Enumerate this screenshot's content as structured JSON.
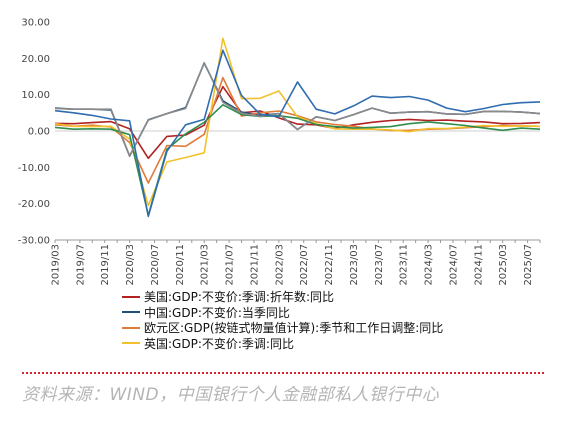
{
  "chart_data": {
    "type": "line",
    "x": [
      "2019/03",
      "2019/05",
      "2019/07",
      "2019/09",
      "2019/11",
      "2020/01",
      "2020/03",
      "2020/05",
      "2020/07",
      "2020/09",
      "2020/11",
      "2021/01",
      "2021/03",
      "2021/05",
      "2021/07",
      "2021/09",
      "2021/11",
      "2022/01",
      "2022/03",
      "2022/05",
      "2022/07",
      "2022/09",
      "2022/11",
      "2023/01",
      "2023/03",
      "2023/05",
      "2023/07",
      "2023/09",
      "2023/11",
      "2024/01",
      "2024/03",
      "2024/05",
      "2024/07",
      "2024/09",
      "2024/11",
      "2025/01",
      "2025/03",
      "2025/05",
      "2025/07",
      "2025/09"
    ],
    "xtick_labels": [
      "2019/03",
      "2019/07",
      "2019/11",
      "2020/03",
      "2020/07",
      "2020/11",
      "2021/03",
      "2021/07",
      "2021/11",
      "2022/03",
      "2022/07",
      "2022/11",
      "2023/03",
      "2023/07",
      "2023/11",
      "2024/03",
      "2024/07",
      "2024/11",
      "2025/03",
      "2025/07"
    ],
    "ylim": [
      -30,
      30
    ],
    "ytick_labels": [
      "30.00",
      "20.00",
      "10.00",
      "0.00",
      "-10.00",
      "-20.00",
      "-30.00"
    ],
    "series": [
      {
        "name": "美国:GDP:不变价:季调:折年数:同比",
        "color": "#b22222",
        "points": [
          [
            "2019/03",
            2.1
          ],
          [
            "2019/06",
            2.0
          ],
          [
            "2019/09",
            2.3
          ],
          [
            "2019/12",
            2.6
          ],
          [
            "2020/03",
            0.6
          ],
          [
            "2020/06",
            -7.5
          ],
          [
            "2020/09",
            -1.5
          ],
          [
            "2020/12",
            -1.1
          ],
          [
            "2021/03",
            1.6
          ],
          [
            "2021/06",
            12.2
          ],
          [
            "2021/09",
            5.0
          ],
          [
            "2021/12",
            5.5
          ],
          [
            "2022/03",
            3.6
          ],
          [
            "2022/06",
            1.9
          ],
          [
            "2022/09",
            1.7
          ],
          [
            "2022/12",
            0.7
          ],
          [
            "2023/03",
            1.7
          ],
          [
            "2023/06",
            2.4
          ],
          [
            "2023/09",
            2.9
          ],
          [
            "2023/12",
            3.2
          ],
          [
            "2024/03",
            2.9
          ],
          [
            "2024/06",
            3.0
          ],
          [
            "2024/09",
            2.7
          ],
          [
            "2024/12",
            2.5
          ],
          [
            "2025/03",
            2.0
          ],
          [
            "2025/06",
            2.1
          ],
          [
            "2025/09",
            2.3
          ]
        ]
      },
      {
        "name": "中国:GDP:不变价:当季同比",
        "color": "#1f4e79",
        "points": [
          [
            "2019/03",
            6.3
          ],
          [
            "2019/06",
            6.0
          ],
          [
            "2019/09",
            6.0
          ],
          [
            "2019/12",
            5.8
          ],
          [
            "2020/03",
            -6.9
          ],
          [
            "2020/06",
            3.1
          ],
          [
            "2020/09",
            4.8
          ],
          [
            "2020/12",
            6.4
          ],
          [
            "2021/03",
            18.7
          ],
          [
            "2021/06",
            8.3
          ],
          [
            "2021/09",
            5.2
          ],
          [
            "2021/12",
            4.3
          ],
          [
            "2022/03",
            4.8
          ],
          [
            "2022/06",
            0.4
          ],
          [
            "2022/09",
            3.9
          ],
          [
            "2022/12",
            2.9
          ],
          [
            "2023/03",
            4.5
          ],
          [
            "2023/06",
            6.3
          ],
          [
            "2023/09",
            4.9
          ],
          [
            "2023/12",
            5.2
          ],
          [
            "2024/03",
            5.3
          ],
          [
            "2024/06",
            4.7
          ],
          [
            "2024/09",
            4.6
          ],
          [
            "2024/12",
            5.4
          ],
          [
            "2025/03",
            5.4
          ],
          [
            "2025/06",
            5.2
          ],
          [
            "2025/09",
            4.8
          ]
        ]
      },
      {
        "name": "欧元区:GDP(按链式物量值计算):季节和工作日调整:同比",
        "color": "#e07b39",
        "points": [
          [
            "2019/03",
            1.7
          ],
          [
            "2019/06",
            1.3
          ],
          [
            "2019/09",
            1.6
          ],
          [
            "2019/12",
            1.1
          ],
          [
            "2020/03",
            -3.2
          ],
          [
            "2020/06",
            -14.3
          ],
          [
            "2020/09",
            -4.0
          ],
          [
            "2020/12",
            -4.2
          ],
          [
            "2021/03",
            -0.9
          ],
          [
            "2021/06",
            14.7
          ],
          [
            "2021/09",
            4.1
          ],
          [
            "2021/12",
            5.0
          ],
          [
            "2022/03",
            5.5
          ],
          [
            "2022/06",
            4.2
          ],
          [
            "2022/09",
            2.5
          ],
          [
            "2022/12",
            1.8
          ],
          [
            "2023/03",
            1.3
          ],
          [
            "2023/06",
            0.6
          ],
          [
            "2023/09",
            0.1
          ],
          [
            "2023/12",
            0.2
          ],
          [
            "2024/03",
            0.5
          ],
          [
            "2024/06",
            0.6
          ],
          [
            "2024/09",
            0.9
          ],
          [
            "2024/12",
            1.2
          ],
          [
            "2025/03",
            1.5
          ],
          [
            "2025/06",
            1.4
          ],
          [
            "2025/09",
            1.3
          ]
        ]
      },
      {
        "name": "英国:GDP:不变价:季调:同比",
        "color": "#f2c12e",
        "points": [
          [
            "2019/03",
            2.0
          ],
          [
            "2019/06",
            1.3
          ],
          [
            "2019/09",
            1.2
          ],
          [
            "2019/12",
            1.3
          ],
          [
            "2020/03",
            -2.2
          ],
          [
            "2020/06",
            -20.5
          ],
          [
            "2020/09",
            -8.5
          ],
          [
            "2020/12",
            -7.3
          ],
          [
            "2021/03",
            -6.0
          ],
          [
            "2021/06",
            25.5
          ],
          [
            "2021/09",
            8.9
          ],
          [
            "2021/12",
            9.0
          ],
          [
            "2022/03",
            11.0
          ],
          [
            "2022/06",
            3.9
          ],
          [
            "2022/09",
            2.0
          ],
          [
            "2022/12",
            0.6
          ],
          [
            "2023/03",
            0.5
          ],
          [
            "2023/06",
            0.5
          ],
          [
            "2023/09",
            0.3
          ],
          [
            "2023/12",
            -0.2
          ],
          [
            "2024/03",
            0.7
          ],
          [
            "2024/06",
            0.7
          ],
          [
            "2024/09",
            1.1
          ],
          [
            "2024/12",
            1.5
          ],
          [
            "2025/03",
            1.3
          ],
          [
            "2025/06",
            1.4
          ],
          [
            "2025/09",
            1.3
          ]
        ]
      },
      {
        "name": "",
        "color": "#2f8e4e",
        "points": [
          [
            "2019/03",
            1.0
          ],
          [
            "2019/06",
            0.5
          ],
          [
            "2019/09",
            0.6
          ],
          [
            "2019/12",
            0.5
          ],
          [
            "2020/03",
            -1.0
          ],
          [
            "2020/06",
            -23.2
          ],
          [
            "2020/09",
            -5.0
          ],
          [
            "2020/12",
            -0.8
          ],
          [
            "2021/03",
            2.4
          ],
          [
            "2021/06",
            7.2
          ],
          [
            "2021/09",
            4.5
          ],
          [
            "2021/12",
            4.0
          ],
          [
            "2022/03",
            4.2
          ],
          [
            "2022/06",
            3.5
          ],
          [
            "2022/09",
            1.8
          ],
          [
            "2022/12",
            1.2
          ],
          [
            "2023/03",
            0.8
          ],
          [
            "2023/06",
            1.0
          ],
          [
            "2023/09",
            1.2
          ],
          [
            "2023/12",
            2.0
          ],
          [
            "2024/03",
            2.5
          ],
          [
            "2024/06",
            2.0
          ],
          [
            "2024/09",
            1.5
          ],
          [
            "2024/12",
            0.8
          ],
          [
            "2025/03",
            0.2
          ],
          [
            "2025/06",
            0.8
          ],
          [
            "2025/09",
            0.5
          ]
        ]
      },
      {
        "name": "",
        "color": "#8a8a8a",
        "points": [
          [
            "2019/03",
            6.2
          ],
          [
            "2019/06",
            6.0
          ],
          [
            "2019/09",
            6.0
          ],
          [
            "2019/12",
            6.0
          ],
          [
            "2020/03",
            -6.8
          ],
          [
            "2020/06",
            3.0
          ],
          [
            "2020/09",
            4.8
          ],
          [
            "2020/12",
            6.2
          ],
          [
            "2021/03",
            18.8
          ],
          [
            "2021/06",
            7.9
          ],
          [
            "2021/09",
            4.9
          ],
          [
            "2021/12",
            4.0
          ],
          [
            "2022/03",
            4.8
          ],
          [
            "2022/06",
            0.4
          ],
          [
            "2022/09",
            3.9
          ],
          [
            "2022/12",
            2.9
          ],
          [
            "2023/03",
            4.5
          ],
          [
            "2023/06",
            6.3
          ],
          [
            "2023/09",
            4.9
          ],
          [
            "2023/12",
            5.2
          ],
          [
            "2024/03",
            5.3
          ],
          [
            "2024/06",
            4.7
          ],
          [
            "2024/09",
            4.6
          ],
          [
            "2024/12",
            5.4
          ],
          [
            "2025/03",
            5.4
          ],
          [
            "2025/06",
            5.2
          ],
          [
            "2025/09",
            4.8
          ]
        ]
      },
      {
        "name": "",
        "color": "#2f6db0",
        "points": [
          [
            "2019/03",
            5.6
          ],
          [
            "2019/06",
            5.0
          ],
          [
            "2019/09",
            4.3
          ],
          [
            "2019/12",
            3.3
          ],
          [
            "2020/03",
            2.8
          ],
          [
            "2020/06",
            -23.5
          ],
          [
            "2020/09",
            -5.6
          ],
          [
            "2020/12",
            1.7
          ],
          [
            "2021/03",
            3.2
          ],
          [
            "2021/06",
            22.2
          ],
          [
            "2021/09",
            9.8
          ],
          [
            "2021/12",
            4.6
          ],
          [
            "2022/03",
            3.9
          ],
          [
            "2022/06",
            13.5
          ],
          [
            "2022/09",
            6.0
          ],
          [
            "2022/12",
            4.7
          ],
          [
            "2023/03",
            6.9
          ],
          [
            "2023/06",
            9.6
          ],
          [
            "2023/09",
            9.2
          ],
          [
            "2023/12",
            9.5
          ],
          [
            "2024/03",
            8.5
          ],
          [
            "2024/06",
            6.3
          ],
          [
            "2024/09",
            5.3
          ],
          [
            "2024/12",
            6.2
          ],
          [
            "2025/03",
            7.3
          ],
          [
            "2025/06",
            7.8
          ],
          [
            "2025/09",
            8.0
          ]
        ]
      }
    ],
    "legend_position": "bottom"
  },
  "legend": [
    {
      "label": "美国:GDP:不变价:季调:折年数:同比",
      "color": "#b22222"
    },
    {
      "label": "中国:GDP:不变价:当季同比",
      "color": "#1f4e79"
    },
    {
      "label": "欧元区:GDP(按链式物量值计算):季节和工作日调整:同比",
      "color": "#e07b39"
    },
    {
      "label": "英国:GDP:不变价:季调:同比",
      "color": "#f2c12e"
    }
  ],
  "source": "资料来源：WIND，中国银行个人金融部私人银行中心"
}
